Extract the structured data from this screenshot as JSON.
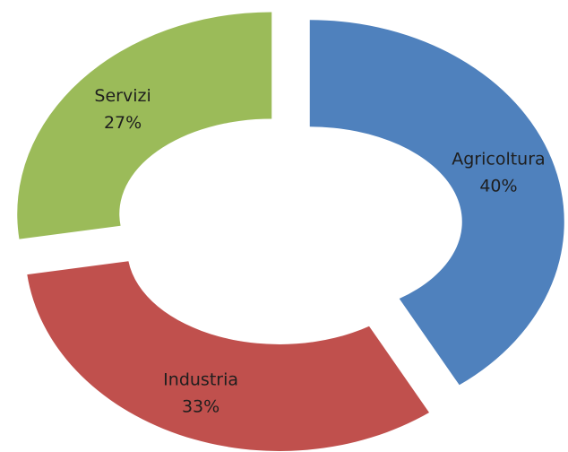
{
  "chart_data": {
    "type": "donut",
    "categories": [
      "Agricoltura",
      "Industria",
      "Servizi"
    ],
    "values": [
      40,
      33,
      27
    ],
    "value_labels": [
      "40%",
      "33%",
      "27%"
    ],
    "colors": [
      "#4f81bd",
      "#c0504d",
      "#9bbb59"
    ]
  }
}
